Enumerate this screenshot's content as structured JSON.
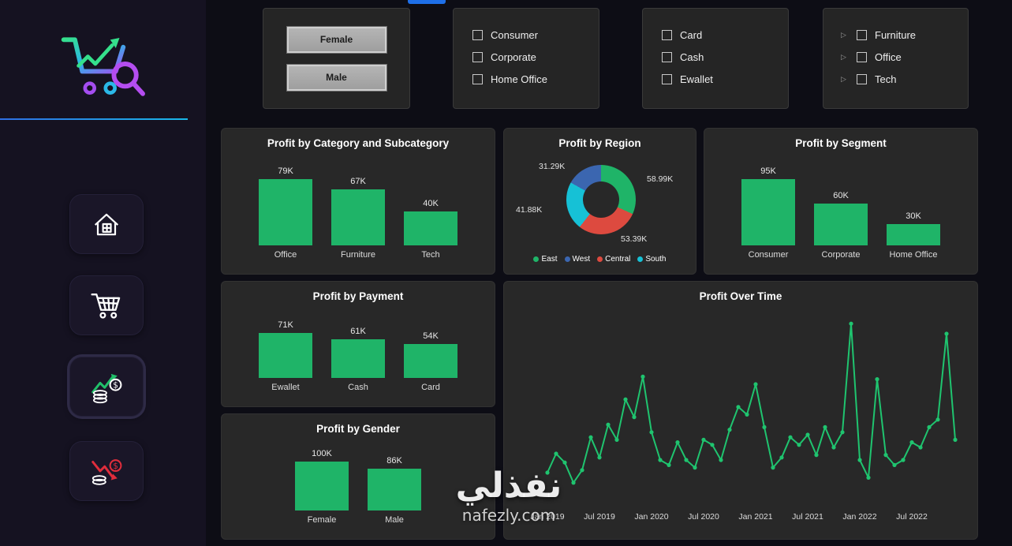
{
  "icons": {
    "expand": "▷"
  },
  "watermark": {
    "arabic": "نفذلي",
    "domain": "nafezly.com"
  },
  "filters": {
    "gender": {
      "female": "Female",
      "male": "Male"
    },
    "segment": {
      "options": [
        "Consumer",
        "Corporate",
        "Home Office"
      ]
    },
    "payment": {
      "options": [
        "Card",
        "Cash",
        "Ewallet"
      ]
    },
    "category": {
      "options": [
        "Furniture",
        "Office",
        "Tech"
      ]
    }
  },
  "chart_data": [
    {
      "id": "category",
      "type": "bar",
      "title": "Profit by Category and Subcategory",
      "categories": [
        "Office",
        "Furniture",
        "Tech"
      ],
      "values": [
        79,
        67,
        40
      ],
      "labels": [
        "79K",
        "67K",
        "40K"
      ],
      "color": "#1fb468"
    },
    {
      "id": "region",
      "type": "donut",
      "title": "Profit by Region",
      "segments": [
        {
          "name": "East",
          "value": 58.99,
          "label": "58.99K",
          "color": "#1fb468"
        },
        {
          "name": "West",
          "value": 31.29,
          "label": "31.29K",
          "color": "#3b66b0"
        },
        {
          "name": "Central",
          "value": 53.39,
          "label": "53.39K",
          "color": "#dd4a3f"
        },
        {
          "name": "South",
          "value": 41.88,
          "label": "41.88K",
          "color": "#16c1d6"
        }
      ]
    },
    {
      "id": "segment",
      "type": "bar",
      "title": "Profit by Segment",
      "categories": [
        "Consumer",
        "Corporate",
        "Home Office"
      ],
      "values": [
        95,
        60,
        30
      ],
      "labels": [
        "95K",
        "60K",
        "30K"
      ],
      "color": "#1fb468"
    },
    {
      "id": "payment",
      "type": "bar",
      "title": "Profit by Payment",
      "categories": [
        "Ewallet",
        "Cash",
        "Card"
      ],
      "values": [
        71,
        61,
        54
      ],
      "labels": [
        "71K",
        "61K",
        "54K"
      ],
      "color": "#1fb468"
    },
    {
      "id": "gender",
      "type": "bar",
      "title": "Profit by Gender",
      "categories": [
        "Female",
        "Male"
      ],
      "values": [
        100,
        86
      ],
      "labels": [
        "100K",
        "86K"
      ],
      "color": "#1fb468"
    },
    {
      "id": "time",
      "type": "line",
      "title": "Profit Over Time",
      "color": "#1fc46f",
      "x_ticks": [
        "Jan 2019",
        "Jul 2019",
        "Jan 2020",
        "Jul 2020",
        "Jan 2021",
        "Jul 2021",
        "Jan 2022",
        "Jul 2022"
      ],
      "values": [
        2.0,
        3.5,
        2.8,
        1.2,
        2.2,
        4.8,
        3.2,
        5.8,
        4.6,
        7.8,
        6.4,
        9.6,
        5.2,
        3.0,
        2.6,
        4.4,
        3.0,
        2.4,
        4.6,
        4.2,
        3.0,
        5.4,
        7.2,
        6.6,
        9.0,
        5.6,
        2.4,
        3.2,
        4.8,
        4.2,
        5.0,
        3.4,
        5.6,
        4.0,
        5.2,
        13.8,
        3.0,
        1.6,
        9.4,
        3.4,
        2.6,
        3.0,
        4.4,
        4.0,
        5.6,
        6.2,
        13.0,
        4.6
      ]
    }
  ]
}
